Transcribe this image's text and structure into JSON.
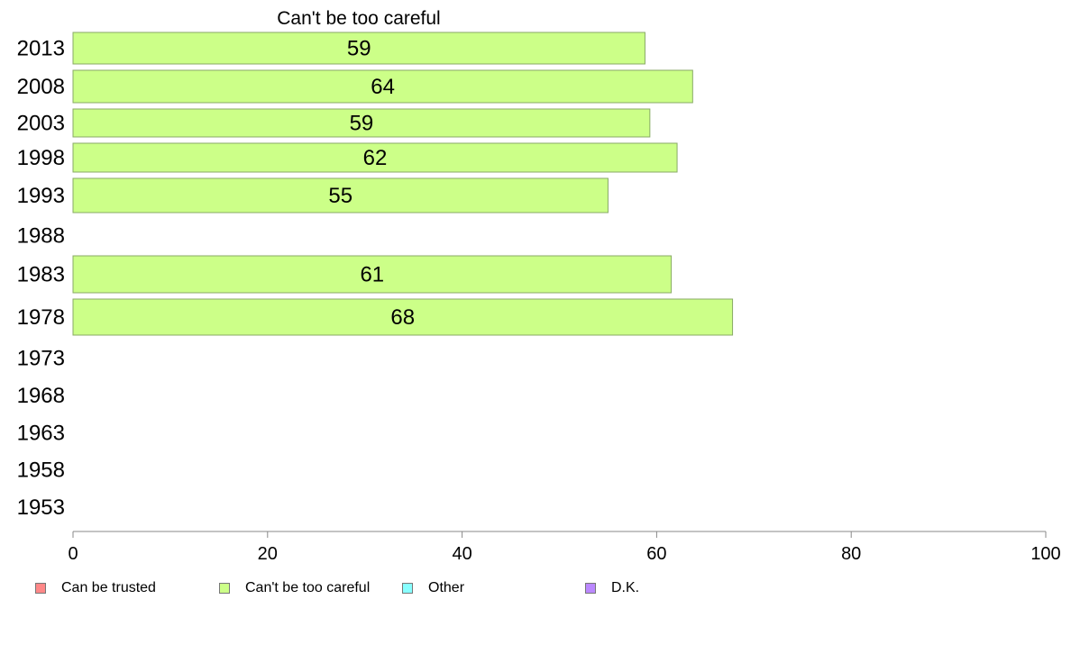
{
  "chart_data": {
    "type": "bar",
    "orientation": "horizontal",
    "title": "Can't be too careful",
    "categories": [
      "2013",
      "2008",
      "2003",
      "1998",
      "1993",
      "1988",
      "1983",
      "1978",
      "1973",
      "1968",
      "1963",
      "1958",
      "1953"
    ],
    "series": [
      {
        "name": "Can't be too careful",
        "color": "#ccff88",
        "values": [
          59,
          64,
          59,
          62,
          55,
          null,
          61,
          68,
          null,
          null,
          null,
          null,
          null
        ],
        "exact_values": [
          58.8,
          63.7,
          59.3,
          62.1,
          55.0,
          null,
          61.5,
          67.8,
          null,
          null,
          null,
          null,
          null
        ]
      }
    ],
    "xlim": [
      0,
      100
    ],
    "xticks": [
      "0",
      "20",
      "40",
      "60",
      "80",
      "100"
    ],
    "grid": false,
    "legend_position": "bottom",
    "legend": [
      {
        "label": "Can be trusted",
        "color": "#ff8888"
      },
      {
        "label": "Can't be too careful",
        "color": "#ccff88"
      },
      {
        "label": "Other",
        "color": "#88ffff"
      },
      {
        "label": "D.K.",
        "color": "#bb88ff"
      }
    ]
  }
}
